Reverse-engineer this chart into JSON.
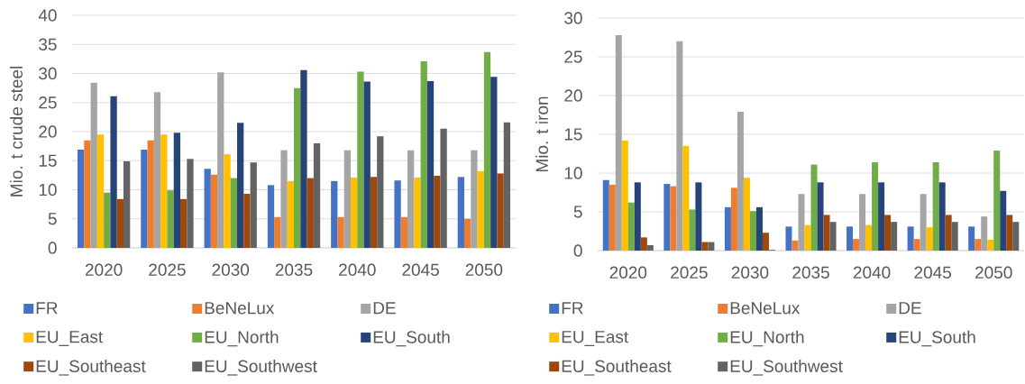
{
  "chart_data": [
    {
      "type": "bar",
      "categories": [
        "2020",
        "2025",
        "2030",
        "2035",
        "2040",
        "2045",
        "2050"
      ],
      "ylabel": "Mio. t crude steel",
      "ylim": [
        0,
        40
      ],
      "yticks": [
        0,
        5,
        10,
        15,
        20,
        25,
        30,
        35,
        40
      ],
      "grid": "y",
      "legend": "bottom",
      "series": [
        {
          "name": "FR",
          "color": "#4472c4",
          "values": [
            16.9,
            16.9,
            13.6,
            10.8,
            11.5,
            11.6,
            12.2
          ]
        },
        {
          "name": "BeNeLux",
          "color": "#ed7d31",
          "values": [
            18.5,
            18.5,
            12.6,
            5.3,
            5.3,
            5.3,
            5.0
          ]
        },
        {
          "name": "DE",
          "color": "#a5a5a5",
          "values": [
            28.4,
            26.8,
            30.2,
            16.8,
            16.8,
            16.8,
            16.8
          ]
        },
        {
          "name": "EU_East",
          "color": "#ffc000",
          "values": [
            19.5,
            19.5,
            16.1,
            11.5,
            12.1,
            12.1,
            13.2
          ]
        },
        {
          "name": "EU_North",
          "color": "#70ad47",
          "values": [
            9.5,
            9.9,
            12.0,
            27.5,
            30.3,
            32.1,
            33.7
          ]
        },
        {
          "name": "EU_South",
          "color": "#264478",
          "values": [
            26.1,
            19.8,
            21.5,
            30.6,
            28.6,
            28.7,
            29.4
          ]
        },
        {
          "name": "EU_Southeast",
          "color": "#9e480e",
          "values": [
            8.4,
            8.4,
            9.3,
            12.0,
            12.2,
            12.4,
            12.8
          ]
        },
        {
          "name": "EU_Southwest",
          "color": "#636363",
          "values": [
            14.9,
            15.3,
            14.7,
            18.0,
            19.2,
            20.5,
            21.6
          ]
        }
      ]
    },
    {
      "type": "bar",
      "categories": [
        "2020",
        "2025",
        "2030",
        "2035",
        "2040",
        "2045",
        "2050"
      ],
      "ylabel": "Mio. t iron",
      "ylim": [
        0,
        30
      ],
      "yticks": [
        0,
        5,
        10,
        15,
        20,
        25,
        30
      ],
      "grid": "y",
      "legend": "bottom",
      "series": [
        {
          "name": "FR",
          "color": "#4472c4",
          "values": [
            9.1,
            8.6,
            5.6,
            3.1,
            3.1,
            3.1,
            3.1
          ]
        },
        {
          "name": "BeNeLux",
          "color": "#ed7d31",
          "values": [
            8.5,
            8.3,
            8.1,
            1.3,
            1.5,
            1.5,
            1.5
          ]
        },
        {
          "name": "DE",
          "color": "#a5a5a5",
          "values": [
            27.8,
            27.0,
            17.9,
            7.3,
            7.3,
            7.3,
            4.4
          ]
        },
        {
          "name": "EU_East",
          "color": "#ffc000",
          "values": [
            14.2,
            13.5,
            9.4,
            3.3,
            3.3,
            3.0,
            1.4
          ]
        },
        {
          "name": "EU_North",
          "color": "#70ad47",
          "values": [
            6.2,
            5.3,
            5.1,
            11.1,
            11.4,
            11.4,
            12.9
          ]
        },
        {
          "name": "EU_South",
          "color": "#264478",
          "values": [
            8.8,
            8.8,
            5.6,
            8.8,
            8.8,
            8.8,
            7.7
          ]
        },
        {
          "name": "EU_Southeast",
          "color": "#9e480e",
          "values": [
            1.7,
            1.1,
            2.3,
            4.6,
            4.6,
            4.6,
            4.6
          ]
        },
        {
          "name": "EU_Southwest",
          "color": "#636363",
          "values": [
            0.7,
            1.1,
            0.1,
            3.7,
            3.7,
            3.7,
            3.7
          ]
        }
      ]
    }
  ]
}
